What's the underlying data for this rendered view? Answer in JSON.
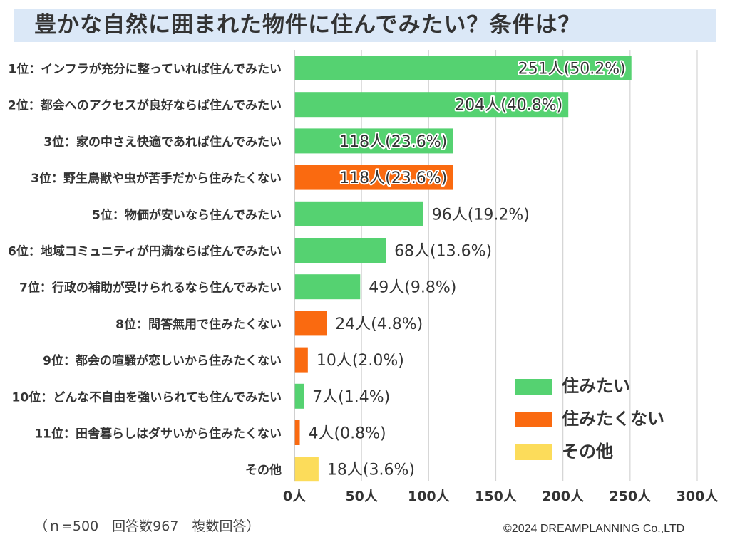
{
  "chart_data": {
    "type": "bar",
    "orientation": "horizontal",
    "title": "豊かな自然に囲まれた物件に住んでみたい？条件は？",
    "categories": [
      "1位：インフラが充分に整っていれば住んでみたい",
      "2位：都会へのアクセスが良好ならば住んでみたい",
      "3位：家の中さえ快適であれば住んでみたい",
      "3位：野生鳥獣や虫が苦手だから住みたくない",
      "5位：物価が安いなら住んでみたい",
      "6位：地域コミュニティが円満ならば住んでみたい",
      "7位：行政の補助が受けられるなら住んでみたい",
      "8位：問答無用で住みたくない",
      "9位：都会の喧騒が恋しいから住みたくない",
      "10位：どんな不自由を強いられても住んでみたい",
      "11位：田舎暮らしはダサいから住みたくない",
      "その他"
    ],
    "values": [
      251,
      204,
      118,
      118,
      96,
      68,
      49,
      24,
      10,
      7,
      4,
      18
    ],
    "data_labels": [
      "251人(50.2%)",
      "204人(40.8%)",
      "118人(23.6%)",
      "118人(23.6%)",
      "96人(19.2%)",
      "68人(13.6%)",
      "49人(9.8%)",
      "24人(4.8%)",
      "10人(2.0%)",
      "7人(1.4%)",
      "4人(0.8%)",
      "18人(3.6%)"
    ],
    "groups": [
      "住みたい",
      "住みたい",
      "住みたい",
      "住みたくない",
      "住みたい",
      "住みたい",
      "住みたい",
      "住みたくない",
      "住みたくない",
      "住みたい",
      "住みたくない",
      "その他"
    ],
    "xlim": [
      0,
      300
    ],
    "xticks": [
      0,
      50,
      100,
      150,
      200,
      250,
      300
    ],
    "xtick_labels": [
      "0人",
      "50人",
      "100人",
      "150人",
      "200人",
      "250人",
      "300人"
    ],
    "grid": true,
    "legend": {
      "placement": "bottom-right",
      "entries": [
        {
          "name": "住みたい",
          "color": "#55d271"
        },
        {
          "name": "住みたくない",
          "color": "#fa6a10"
        },
        {
          "name": "その他",
          "color": "#fcdc5a"
        }
      ]
    }
  },
  "footnote": "（ｎ=500　回答数967　複数回答）",
  "copyright": "©2024 DREAMPLANNING Co.,LTD"
}
